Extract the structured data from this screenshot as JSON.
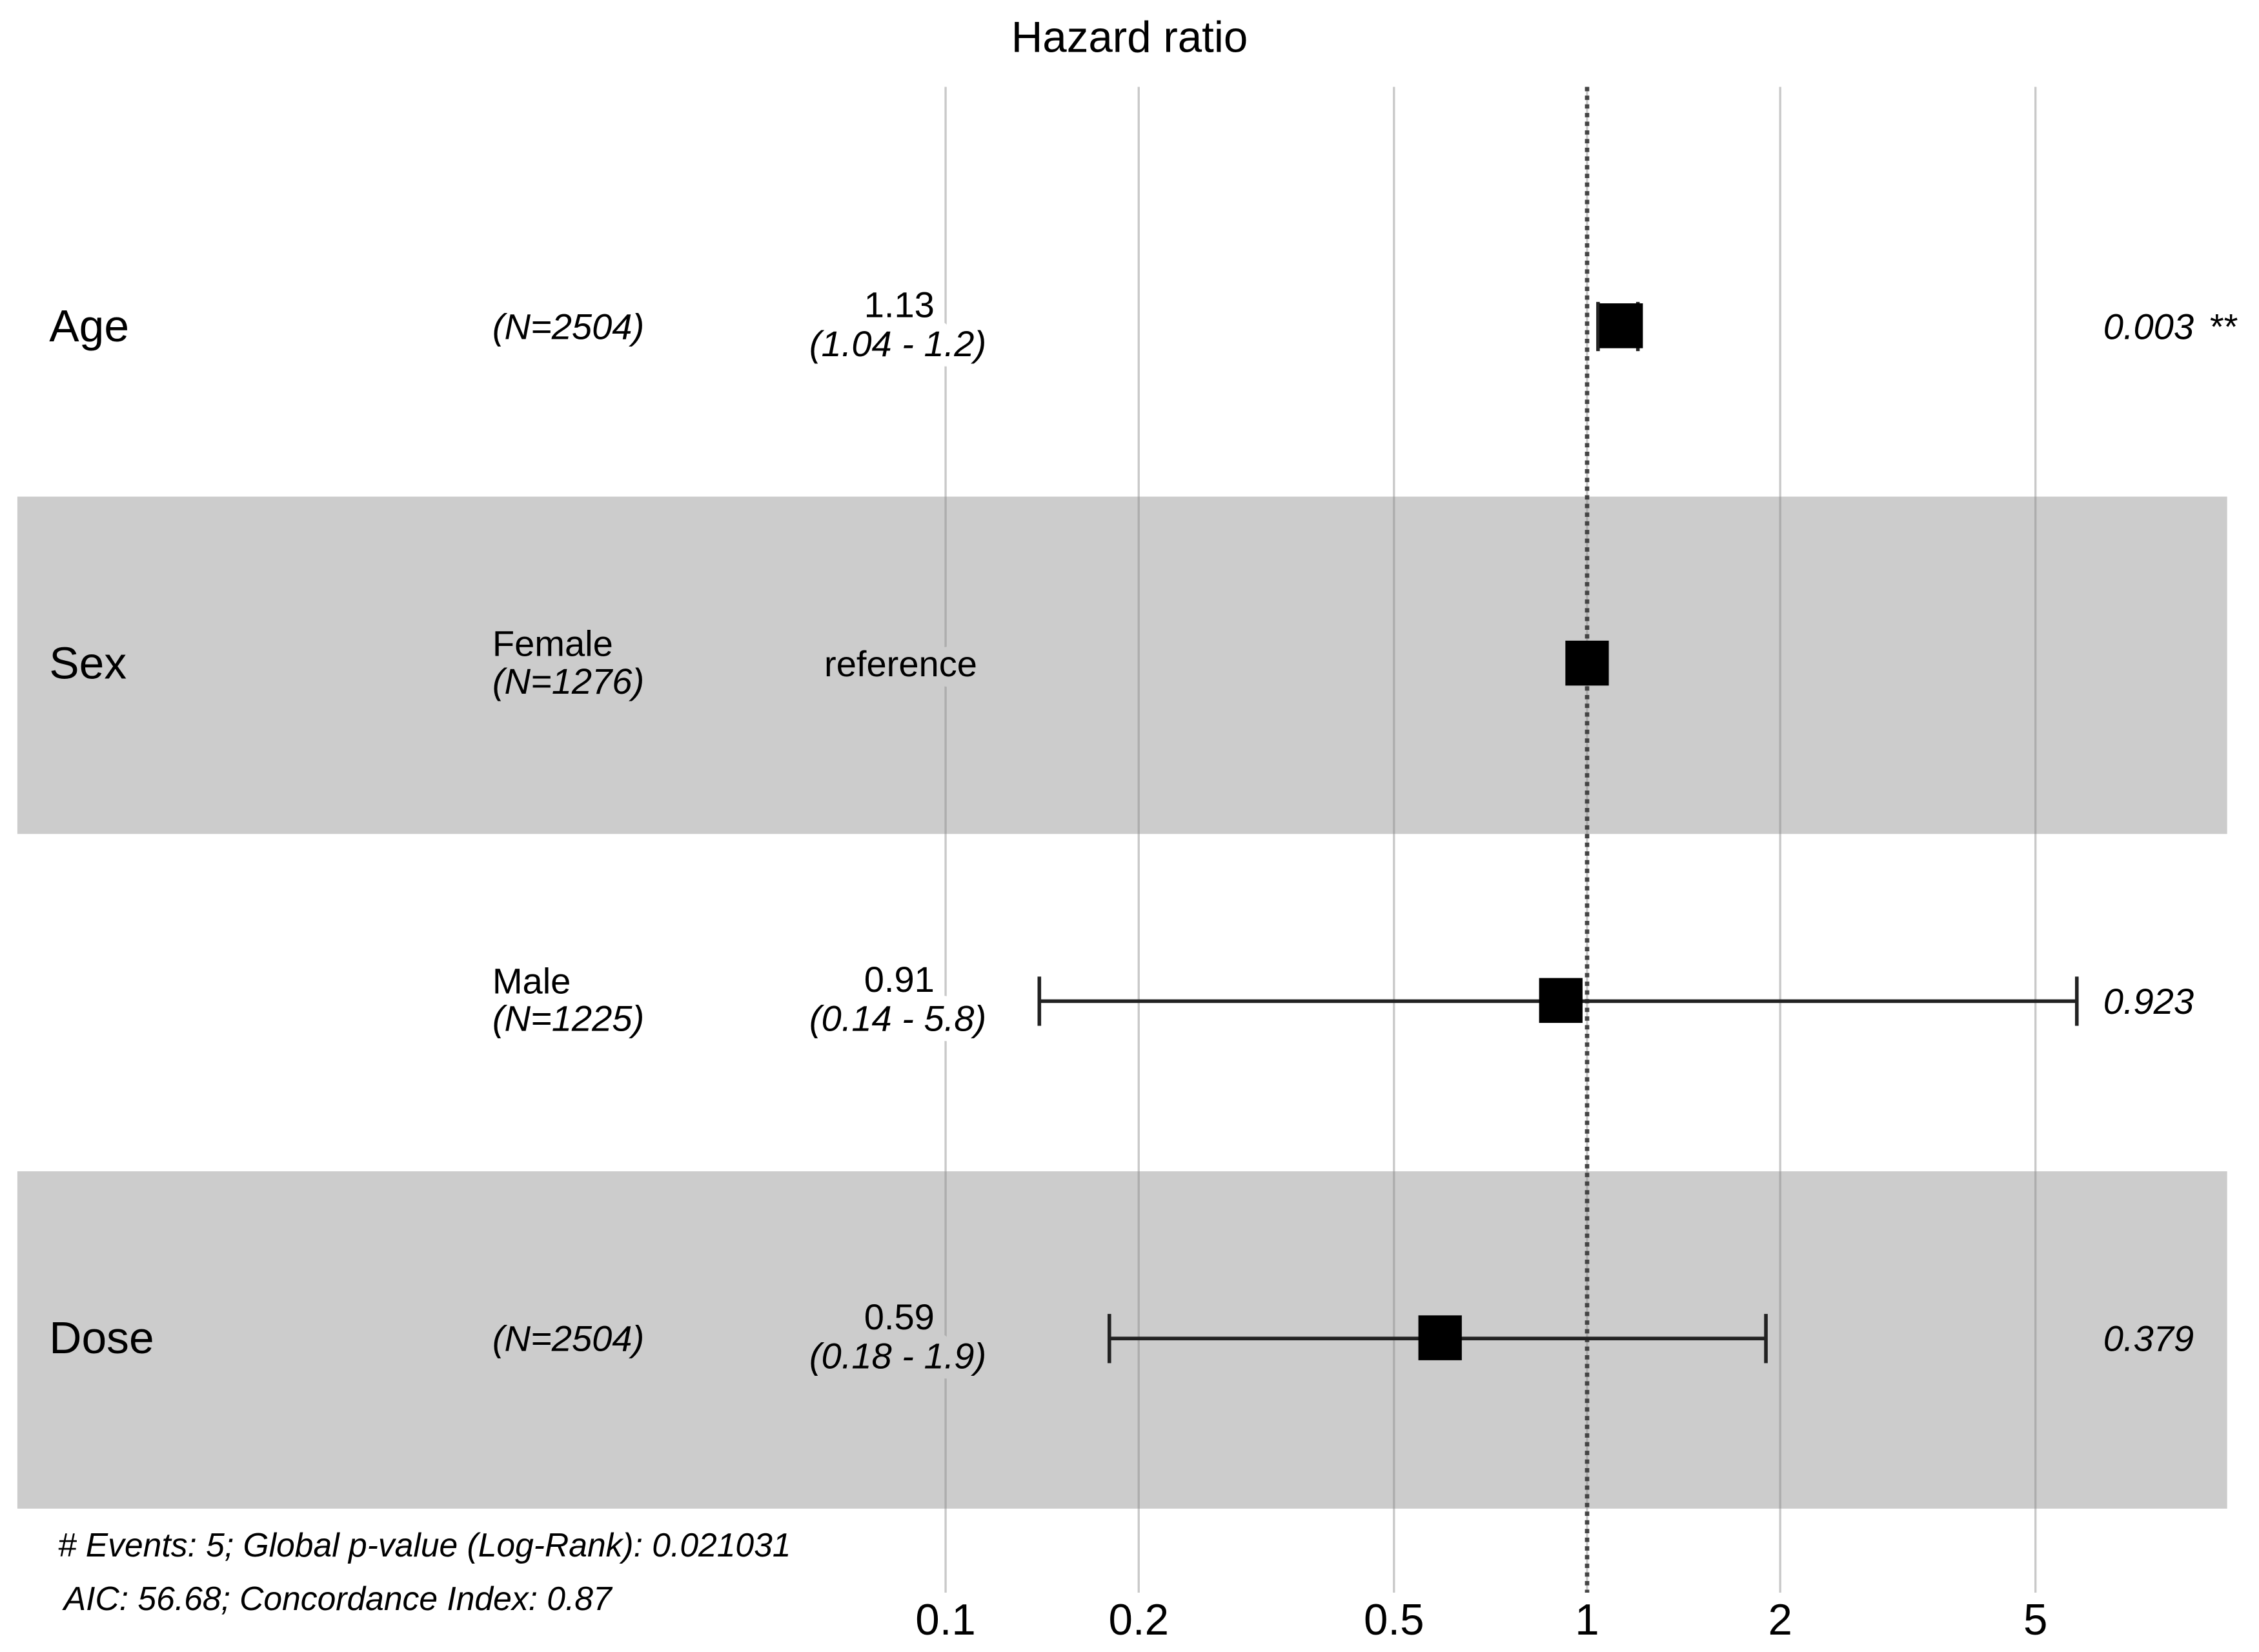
{
  "chart_data": {
    "type": "forest",
    "title": "Hazard ratio",
    "log_x": true,
    "xlim": [
      0.1,
      10
    ],
    "xticks": [
      0.1,
      0.2,
      0.5,
      1,
      2,
      5
    ],
    "grid": true,
    "ref_line": 1,
    "band_color": "#cccccc",
    "box_color": "#000000",
    "rows": [
      {
        "variable": "Age",
        "n_label": "(N=2504)",
        "estimate": 1.13,
        "ci": [
          1.04,
          1.2
        ],
        "ci_label": "(1.04 - 1.2)",
        "p": 0.003,
        "p_stars": "**"
      },
      {
        "variable": "Sex",
        "level": "Female",
        "n_label": "(N=1276)",
        "estimate": 1,
        "estimate_label": "reference"
      },
      {
        "level": "Male",
        "n_label": "(N=1225)",
        "estimate": 0.91,
        "ci": [
          0.14,
          5.8
        ],
        "ci_label": "(0.14 - 5.8)",
        "p": 0.923
      },
      {
        "variable": "Dose",
        "n_label": "(N=2504)",
        "estimate": 0.59,
        "ci": [
          0.18,
          1.9
        ],
        "ci_label": "(0.18 - 1.9)",
        "p": 0.379
      }
    ],
    "notes": [
      "# Events: 5; Global p-value (Log-Rank): 0.021031",
      "AIC: 56.68; Concordance Index: 0.87"
    ]
  }
}
